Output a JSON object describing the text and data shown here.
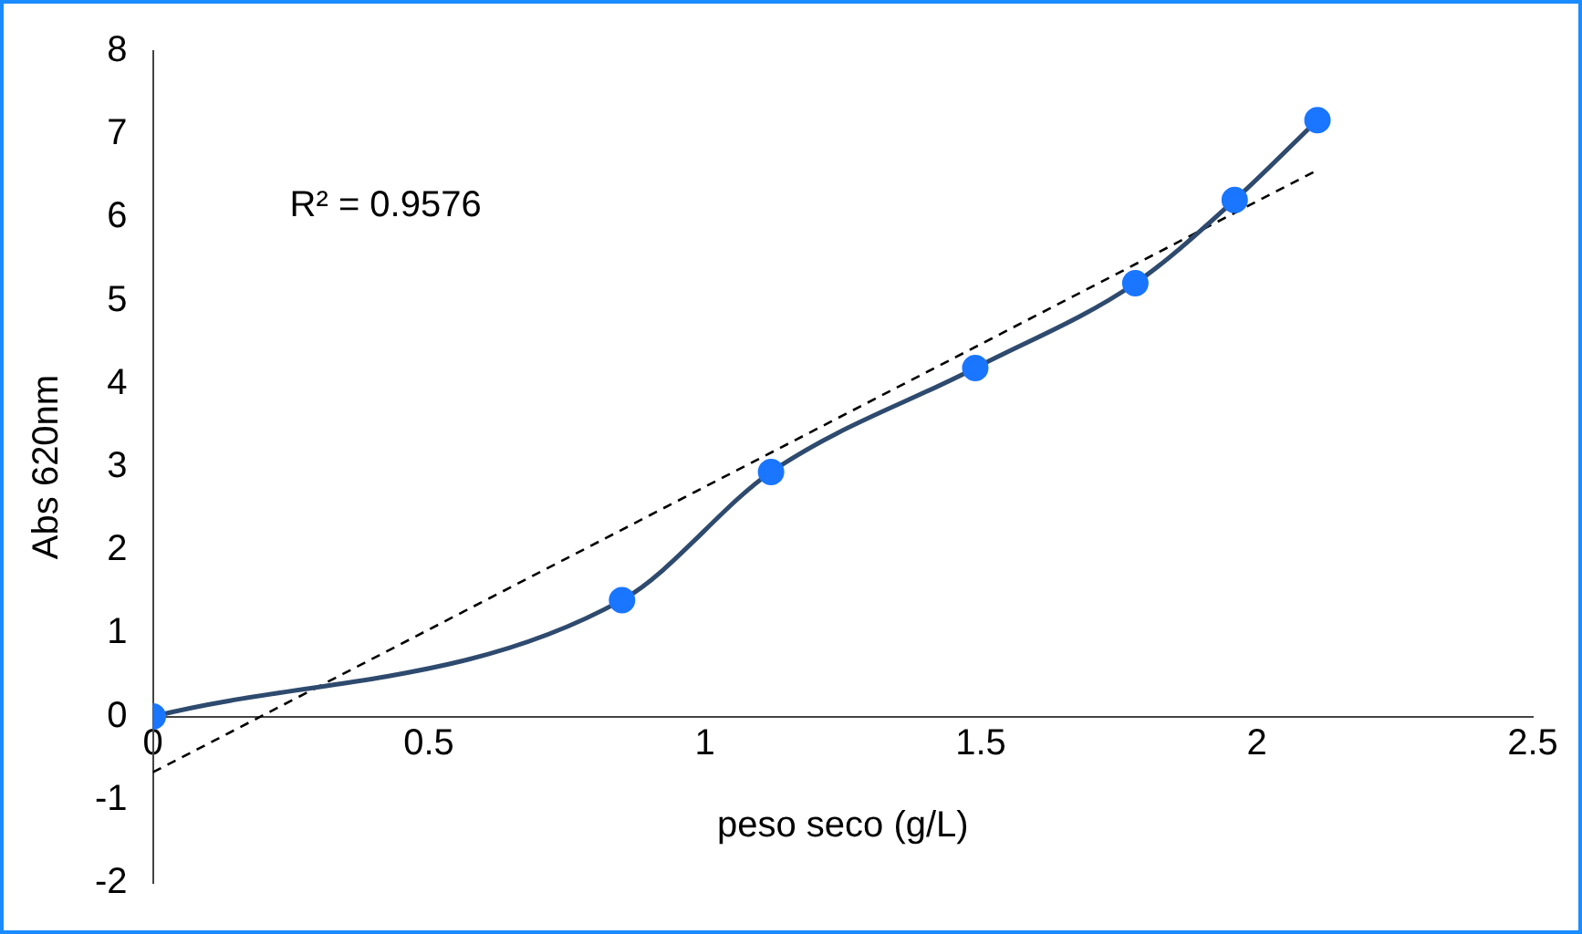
{
  "chart_data": {
    "type": "line",
    "xlabel": "peso seco (g/L)",
    "ylabel": "Abs 620nm",
    "annotations": [
      "R² = 0.9576"
    ],
    "xlim": [
      0,
      2.5
    ],
    "xticks": [
      0,
      0.5,
      1,
      1.5,
      2,
      2.5
    ],
    "ylim": [
      -2,
      8
    ],
    "yticks": [
      -2,
      -1,
      0,
      1,
      2,
      3,
      4,
      5,
      6,
      7,
      8
    ],
    "grid": false,
    "legend": false,
    "series": [
      {
        "color": "#2e4a6e",
        "colors": [
          "#1a75ff",
          "#1a75ff",
          "#1a75ff",
          "#1a75ff",
          "#1a75ff",
          "#1a75ff",
          "#1a75ff"
        ],
        "marker": "circle",
        "line_style": "solid",
        "x": [
          0,
          0.85,
          1.12,
          1.49,
          1.78,
          1.96,
          2.11
        ],
        "values": [
          0,
          1.4,
          2.94,
          4.19,
          5.21,
          6.21,
          7.17
        ]
      },
      {
        "color": "#000000",
        "marker": "none",
        "line_style": "dashed",
        "x": [
          0,
          2.11
        ],
        "values": [
          -0.67,
          6.57
        ]
      }
    ]
  }
}
